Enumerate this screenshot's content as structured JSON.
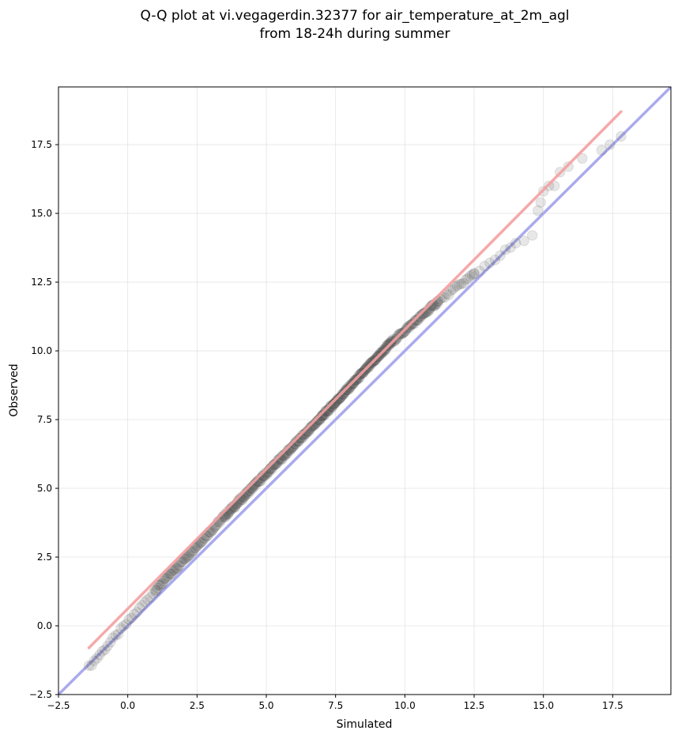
{
  "chart_data": {
    "type": "scatter",
    "title_lines": [
      "Q-Q plot at vi.vegagerdin.32377 for air_temperature_at_2m_agl",
      "from 18-24h during summer"
    ],
    "xlabel": "Simulated",
    "ylabel": "Observed",
    "xlim": [
      -2.5,
      19.6
    ],
    "ylim": [
      -2.5,
      19.6
    ],
    "xticks": [
      -2.5,
      0.0,
      2.5,
      5.0,
      7.5,
      10.0,
      12.5,
      15.0,
      17.5
    ],
    "yticks": [
      -2.5,
      0.0,
      2.5,
      5.0,
      7.5,
      10.0,
      12.5,
      15.0,
      17.5
    ],
    "xtick_labels": [
      "−2.5",
      "0.0",
      "2.5",
      "5.0",
      "7.5",
      "10.0",
      "12.5",
      "15.0",
      "17.5"
    ],
    "ytick_labels": [
      "−2.5",
      "0.0",
      "2.5",
      "5.0",
      "7.5",
      "10.0",
      "12.5",
      "15.0",
      "17.5"
    ],
    "grid": true,
    "reference_line": {
      "x": [
        -2.5,
        19.6
      ],
      "y": [
        -2.5,
        19.6
      ],
      "color": "#aaaaee"
    },
    "fit_line": {
      "x": [
        -1.4,
        17.8
      ],
      "y": [
        -0.8,
        18.7
      ],
      "color": "#f4a0a0"
    },
    "segments": [
      {
        "x0": -1.4,
        "y0": -1.5,
        "x1": 1.0,
        "y1": 1.3,
        "n": 26
      },
      {
        "x0": 1.0,
        "y0": 1.3,
        "x1": 3.5,
        "y1": 4.0,
        "n": 70
      },
      {
        "x0": 3.5,
        "y0": 4.0,
        "x1": 7.0,
        "y1": 7.6,
        "n": 150
      },
      {
        "x0": 7.0,
        "y0": 7.6,
        "x1": 9.5,
        "y1": 10.3,
        "n": 130
      },
      {
        "x0": 9.5,
        "y0": 10.3,
        "x1": 11.2,
        "y1": 11.8,
        "n": 60
      },
      {
        "x0": 11.2,
        "y0": 11.8,
        "x1": 12.5,
        "y1": 12.8,
        "n": 18
      },
      {
        "x0": 12.5,
        "y0": 12.8,
        "x1": 14.0,
        "y1": 13.9,
        "n": 9
      }
    ],
    "tail_points": {
      "x": [
        14.3,
        14.6,
        14.8,
        14.9,
        15.0,
        15.2,
        15.4,
        15.6,
        15.9,
        16.4,
        17.1,
        17.4,
        17.8
      ],
      "y": [
        14.0,
        14.2,
        15.1,
        15.4,
        15.8,
        16.0,
        16.0,
        16.5,
        16.7,
        17.0,
        17.3,
        17.5,
        17.8
      ]
    },
    "point_color": "#555555"
  }
}
